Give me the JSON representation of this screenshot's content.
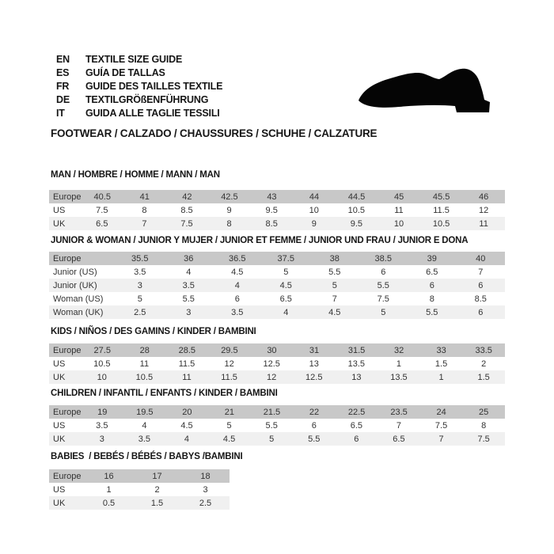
{
  "header": {
    "languages": [
      {
        "code": "EN",
        "label": "TEXTILE SIZE GUIDE"
      },
      {
        "code": "ES",
        "label": "GUÍA DE TALLAS"
      },
      {
        "code": "FR",
        "label": "GUIDE DES TAILLES TEXTILE"
      },
      {
        "code": "DE",
        "label": "TEXTILGRÖßENFÜHRUNG"
      },
      {
        "code": "IT",
        "label": "GUIDA ALLE TAGLIE TESSILI"
      }
    ],
    "category_line": "FOOTWEAR / CALZADO / CHAUSSURES / SCHUHE / CALZATURE",
    "shoe_icon": "dress-shoe-silhouette"
  },
  "colors": {
    "header_row": "#c8c8c8",
    "alt_row": "#f0f0f0",
    "white_row": "#ffffff",
    "text": "#1d1d1b",
    "shoe": "#050505"
  },
  "sections": [
    {
      "title": "MAN / HOMBRE / HOMME / MANN / MAN",
      "rows": [
        {
          "label": "Europe",
          "values": [
            "40.5",
            "41",
            "42",
            "42.5",
            "43",
            "44",
            "44.5",
            "45",
            "45.5",
            "46"
          ]
        },
        {
          "label": "US",
          "values": [
            "7.5",
            "8",
            "8.5",
            "9",
            "9.5",
            "10",
            "10.5",
            "11",
            "11.5",
            "12"
          ]
        },
        {
          "label": "UK",
          "values": [
            "6.5",
            "7",
            "7.5",
            "8",
            "8.5",
            "9",
            "9.5",
            "10",
            "10.5",
            "11"
          ]
        }
      ]
    },
    {
      "title": "JUNIOR & WOMAN / JUNIOR Y MUJER / JUNIOR ET FEMME / JUNIOR UND FRAU / JUNIOR E DONA",
      "rows": [
        {
          "label": "Europe",
          "values": [
            "35.5",
            "36",
            "36.5",
            "37.5",
            "38",
            "38.5",
            "39",
            "40"
          ]
        },
        {
          "label": "Junior (US)",
          "values": [
            "3.5",
            "4",
            "4.5",
            "5",
            "5.5",
            "6",
            "6.5",
            "7"
          ]
        },
        {
          "label": "Junior (UK)",
          "values": [
            "3",
            "3.5",
            "4",
            "4.5",
            "5",
            "5.5",
            "6",
            "6"
          ]
        },
        {
          "label": "Woman (US)",
          "values": [
            "5",
            "5.5",
            "6",
            "6.5",
            "7",
            "7.5",
            "8",
            "8.5"
          ]
        },
        {
          "label": "Woman (UK)",
          "values": [
            "2.5",
            "3",
            "3.5",
            "4",
            "4.5",
            "5",
            "5.5",
            "6"
          ]
        }
      ]
    },
    {
      "title": "KIDS / NIÑOS / DES GAMINS / KINDER / BAMBINI",
      "rows": [
        {
          "label": "Europe",
          "values": [
            "27.5",
            "28",
            "28.5",
            "29.5",
            "30",
            "31",
            "31.5",
            "32",
            "33",
            "33.5"
          ]
        },
        {
          "label": "US",
          "values": [
            "10.5",
            "11",
            "11.5",
            "12",
            "12.5",
            "13",
            "13.5",
            "1",
            "1.5",
            "2"
          ]
        },
        {
          "label": "UK",
          "values": [
            "10",
            "10.5",
            "11",
            "11.5",
            "12",
            "12.5",
            "13",
            "13.5",
            "1",
            "1.5"
          ]
        }
      ]
    },
    {
      "title": "CHILDREN / INFANTIL / ENFANTS / KINDER / BAMBINI",
      "rows": [
        {
          "label": "Europe",
          "values": [
            "19",
            "19.5",
            "20",
            "21",
            "21.5",
            "22",
            "22.5",
            "23.5",
            "24",
            "25"
          ]
        },
        {
          "label": "US",
          "values": [
            "3.5",
            "4",
            "4.5",
            "5",
            "5.5",
            "6",
            "6.5",
            "7",
            "7.5",
            "8"
          ]
        },
        {
          "label": "UK",
          "values": [
            "3",
            "3.5",
            "4",
            "4.5",
            "5",
            "5.5",
            "6",
            "6.5",
            "7",
            "7.5"
          ]
        }
      ]
    },
    {
      "title": "BABIES  / BEBÉS / BÉBÉS / BABYS /BAMBINI",
      "rows": [
        {
          "label": "Europe",
          "values": [
            "16",
            "17",
            "18"
          ]
        },
        {
          "label": "US",
          "values": [
            "1",
            "2",
            "3"
          ]
        },
        {
          "label": "UK",
          "values": [
            "0.5",
            "1.5",
            "2.5"
          ]
        }
      ]
    }
  ]
}
